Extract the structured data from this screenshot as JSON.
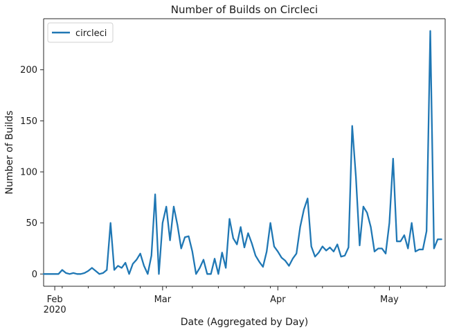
{
  "chart_data": {
    "type": "line",
    "title": "Number of Builds on Circleci",
    "xlabel": "Date (Aggregated by Day)",
    "ylabel": "Number of Builds",
    "xlim": [
      "2020-01-29",
      "2020-05-16"
    ],
    "ylim": [
      -12,
      250
    ],
    "y_ticks": [
      0,
      50,
      100,
      150,
      200
    ],
    "x_major_ticks": [
      {
        "date": "2020-02-01",
        "label": "Feb",
        "sublabel": "2020"
      },
      {
        "date": "2020-03-01",
        "label": "Mar",
        "sublabel": ""
      },
      {
        "date": "2020-04-01",
        "label": "Apr",
        "sublabel": ""
      },
      {
        "date": "2020-05-01",
        "label": "May",
        "sublabel": ""
      }
    ],
    "x_minor_tick_dates": [
      "2020-02-03",
      "2020-02-10",
      "2020-02-17",
      "2020-02-24",
      "2020-03-02",
      "2020-03-09",
      "2020-03-16",
      "2020-03-23",
      "2020-03-30",
      "2020-04-06",
      "2020-04-13",
      "2020-04-20",
      "2020-04-27",
      "2020-05-04",
      "2020-05-11"
    ],
    "legend_position": "top-left",
    "grid": false,
    "series": [
      {
        "name": "circleci",
        "color": "#1f77b4",
        "start_date": "2020-01-29",
        "values": [
          0,
          0,
          0,
          0,
          0,
          4,
          1,
          0,
          1,
          0,
          0,
          1,
          3,
          6,
          3,
          0,
          1,
          4,
          50,
          4,
          8,
          6,
          11,
          0,
          10,
          14,
          20,
          8,
          0,
          18,
          78,
          0,
          50,
          66,
          33,
          66,
          48,
          25,
          36,
          37,
          22,
          0,
          6,
          14,
          0,
          0,
          15,
          0,
          21,
          6,
          54,
          35,
          29,
          46,
          26,
          40,
          30,
          18,
          12,
          7,
          22,
          50,
          27,
          22,
          16,
          13,
          8,
          15,
          20,
          46,
          63,
          74,
          27,
          17,
          21,
          27,
          23,
          26,
          22,
          29,
          17,
          18,
          26,
          145,
          95,
          28,
          66,
          60,
          46,
          22,
          25,
          25,
          20,
          50,
          113,
          32,
          32,
          38,
          25,
          50,
          22,
          24,
          24,
          42,
          238,
          25,
          34,
          34
        ]
      }
    ]
  }
}
